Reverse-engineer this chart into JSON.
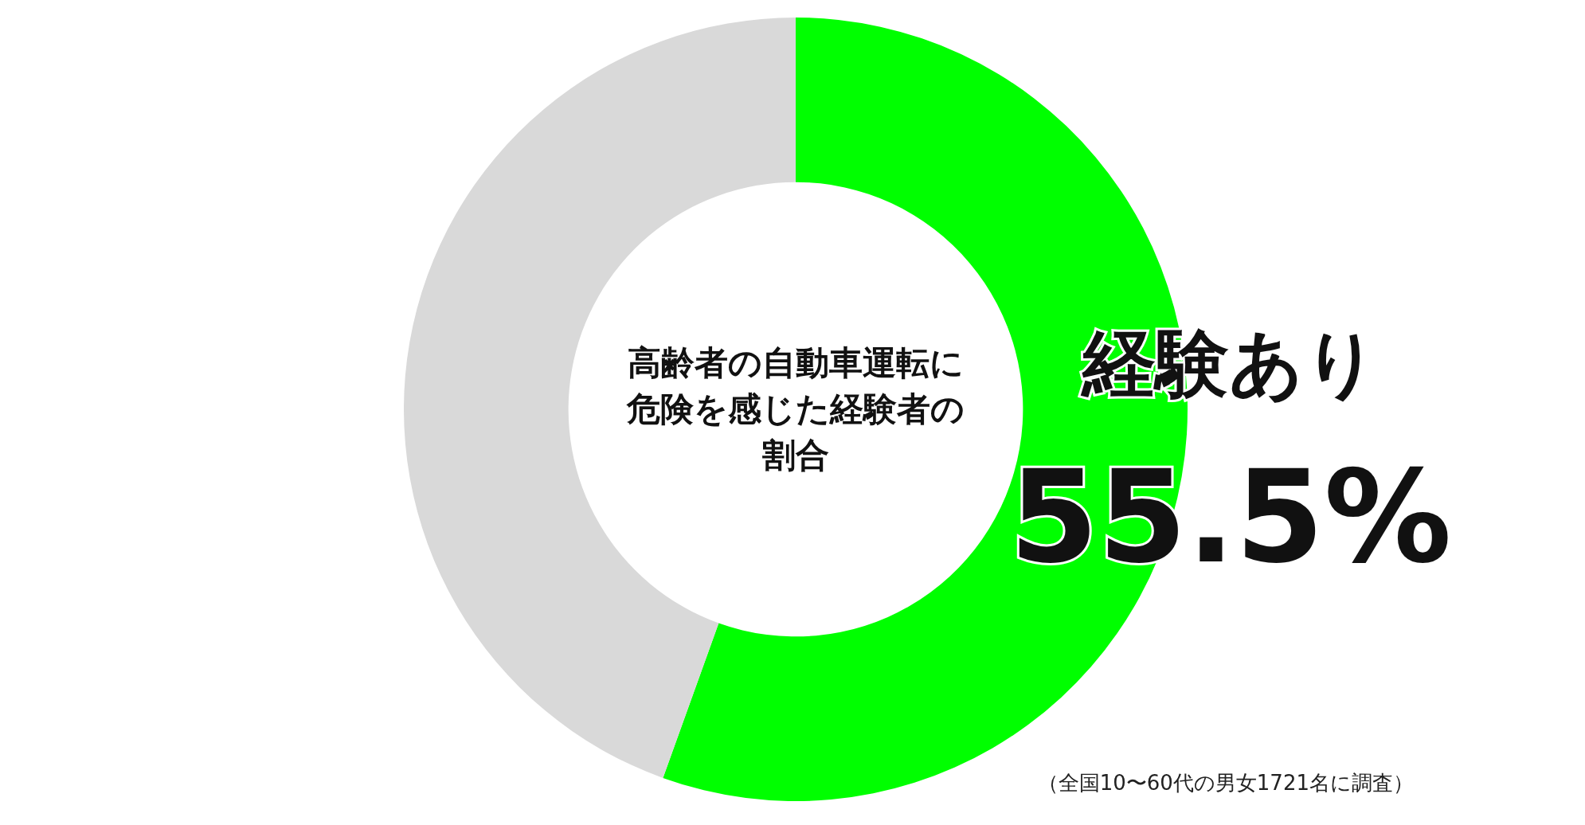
{
  "chart_data": {
    "type": "donut",
    "title": "高齢者の自動車運転に危険を感じた経験者の割合",
    "categories": [
      "経験あり",
      null
    ],
    "values": [
      55.5,
      44.5
    ],
    "colors": [
      "#00ff00",
      "#d9d9d9"
    ],
    "value_labels": [
      "55.5%",
      null
    ],
    "annotations": [
      "（全国10〜60代の男女1721名に調査）"
    ]
  }
}
